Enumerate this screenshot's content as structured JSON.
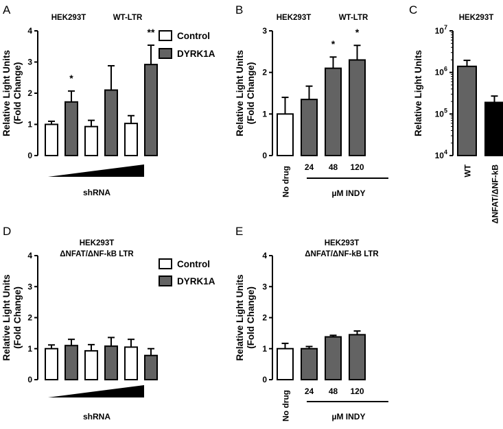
{
  "chart_data": [
    {
      "id": "A",
      "type": "bar",
      "panel_label": "A",
      "headers": [
        "HEK293T",
        "WT-LTR"
      ],
      "ylabel_line1": "Relative Light Units",
      "ylabel_line2": "(Fold Change)",
      "ylim": [
        0,
        4
      ],
      "yticks": [
        "0",
        "1",
        "2",
        "3",
        "4"
      ],
      "legend": [
        "Control",
        "DYRK1A"
      ],
      "xlabel": "shRNA",
      "bars": [
        {
          "group": "Control",
          "value": 1.0,
          "error": 0.1,
          "sig": ""
        },
        {
          "group": "DYRK1A",
          "value": 1.72,
          "error": 0.35,
          "sig": "*"
        },
        {
          "group": "Control",
          "value": 0.93,
          "error": 0.2,
          "sig": ""
        },
        {
          "group": "DYRK1A",
          "value": 2.1,
          "error": 0.78,
          "sig": ""
        },
        {
          "group": "Control",
          "value": 1.03,
          "error": 0.25,
          "sig": ""
        },
        {
          "group": "DYRK1A",
          "value": 2.92,
          "error": 0.62,
          "sig": "**"
        }
      ]
    },
    {
      "id": "B",
      "type": "bar",
      "panel_label": "B",
      "headers": [
        "HEK293T",
        "WT-LTR"
      ],
      "ylabel_line1": "Relative Light Units",
      "ylabel_line2": "(Fold Change)",
      "ylim": [
        0,
        3
      ],
      "yticks": [
        "0",
        "1",
        "2",
        "3"
      ],
      "categories": [
        "No drug",
        "24",
        "48",
        "120"
      ],
      "xlabel": "µM INDY",
      "bars": [
        {
          "group": "Control",
          "value": 1.0,
          "error": 0.4,
          "sig": ""
        },
        {
          "group": "DYRK1A",
          "value": 1.35,
          "error": 0.32,
          "sig": ""
        },
        {
          "group": "DYRK1A",
          "value": 2.1,
          "error": 0.27,
          "sig": "*"
        },
        {
          "group": "DYRK1A",
          "value": 2.3,
          "error": 0.35,
          "sig": "*"
        }
      ]
    },
    {
      "id": "C",
      "type": "bar",
      "panel_label": "C",
      "headers": [
        "HEK293T"
      ],
      "ylabel_line1": "Relative Light Units",
      "yscale": "log",
      "ylim_exp": [
        4,
        7
      ],
      "ytick_base": "10",
      "ytick_exponents": [
        "4",
        "5",
        "6",
        "7"
      ],
      "categories": [
        "WT",
        "ΔNFAT/ΔNF-kB"
      ],
      "bars": [
        {
          "color": "gray",
          "value": 1400000,
          "error": 550000
        },
        {
          "color": "black",
          "value": 190000,
          "error": 80000
        }
      ]
    },
    {
      "id": "D",
      "type": "bar",
      "panel_label": "D",
      "headers": [
        "HEK293T",
        "ΔNFAT/ΔNF-kB LTR"
      ],
      "ylabel_line1": "Relative Light Units",
      "ylabel_line2": "(Fold Change)",
      "ylim": [
        0,
        4
      ],
      "yticks": [
        "0",
        "1",
        "2",
        "3",
        "4"
      ],
      "legend": [
        "Control",
        "DYRK1A"
      ],
      "xlabel": "shRNA",
      "bars": [
        {
          "group": "Control",
          "value": 1.0,
          "error": 0.12,
          "sig": ""
        },
        {
          "group": "DYRK1A",
          "value": 1.1,
          "error": 0.2,
          "sig": ""
        },
        {
          "group": "Control",
          "value": 0.93,
          "error": 0.2,
          "sig": ""
        },
        {
          "group": "DYRK1A",
          "value": 1.08,
          "error": 0.28,
          "sig": ""
        },
        {
          "group": "Control",
          "value": 1.05,
          "error": 0.25,
          "sig": ""
        },
        {
          "group": "DYRK1A",
          "value": 0.78,
          "error": 0.22,
          "sig": ""
        }
      ]
    },
    {
      "id": "E",
      "type": "bar",
      "panel_label": "E",
      "headers": [
        "HEK293T",
        "ΔNFAT/ΔNF-kB LTR"
      ],
      "ylabel_line1": "Relative Light Units",
      "ylabel_line2": "(Fold Change)",
      "ylim": [
        0,
        4
      ],
      "yticks": [
        "0",
        "1",
        "2",
        "3",
        "4"
      ],
      "categories": [
        "No drug",
        "24",
        "48",
        "120"
      ],
      "xlabel": "µM INDY",
      "bars": [
        {
          "group": "Control",
          "value": 1.0,
          "error": 0.17,
          "sig": ""
        },
        {
          "group": "DYRK1A",
          "value": 1.0,
          "error": 0.07,
          "sig": ""
        },
        {
          "group": "DYRK1A",
          "value": 1.38,
          "error": 0.05,
          "sig": ""
        },
        {
          "group": "DYRK1A",
          "value": 1.45,
          "error": 0.12,
          "sig": ""
        }
      ]
    }
  ],
  "colors": {
    "control": "#ffffff",
    "dyrk1a": "#636363",
    "black": "#000000",
    "axis": "#000000"
  }
}
